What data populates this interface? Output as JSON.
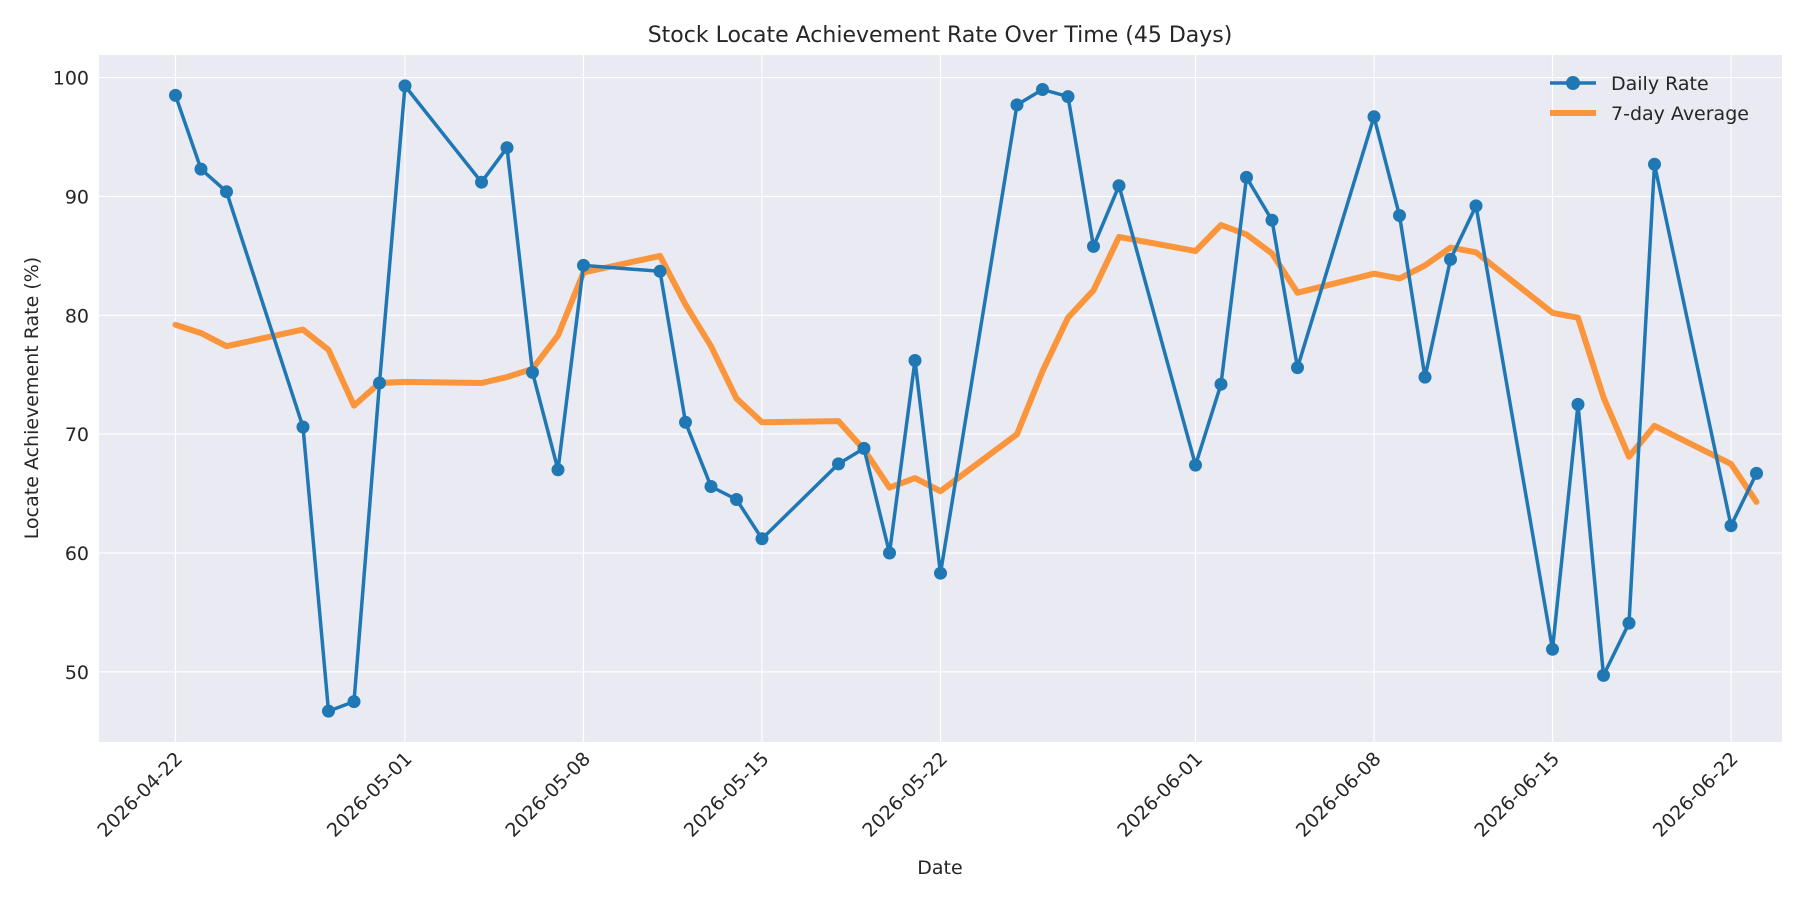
{
  "chart_data": {
    "type": "line",
    "title": "Stock Locate Achievement Rate Over Time (45 Days)",
    "xlabel": "Date",
    "ylabel": "Locate Achievement Rate (%)",
    "x_ticks": [
      "2026-04-22",
      "2026-05-01",
      "2026-05-08",
      "2026-05-15",
      "2026-05-22",
      "2026-06-01",
      "2026-06-08",
      "2026-06-15",
      "2026-06-22"
    ],
    "y_ticks": [
      50,
      60,
      70,
      80,
      90,
      100
    ],
    "ylim": [
      44.1,
      101.9
    ],
    "xlim": [
      "2026-04-19",
      "2026-06-24"
    ],
    "grid": true,
    "legend_position": "top-right",
    "x": [
      "2026-04-22",
      "2026-04-23",
      "2026-04-24",
      "2026-04-27",
      "2026-04-28",
      "2026-04-29",
      "2026-04-30",
      "2026-05-01",
      "2026-05-04",
      "2026-05-05",
      "2026-05-06",
      "2026-05-07",
      "2026-05-08",
      "2026-05-11",
      "2026-05-12",
      "2026-05-13",
      "2026-05-14",
      "2026-05-15",
      "2026-05-18",
      "2026-05-19",
      "2026-05-20",
      "2026-05-21",
      "2026-05-22",
      "2026-05-25",
      "2026-05-26",
      "2026-05-27",
      "2026-05-28",
      "2026-05-29",
      "2026-06-01",
      "2026-06-02",
      "2026-06-03",
      "2026-06-04",
      "2026-06-05",
      "2026-06-08",
      "2026-06-09",
      "2026-06-10",
      "2026-06-11",
      "2026-06-12",
      "2026-06-15",
      "2026-06-16",
      "2026-06-17",
      "2026-06-18",
      "2026-06-19",
      "2026-06-22",
      "2026-06-23"
    ],
    "series": [
      {
        "name": "Daily Rate",
        "color": "#1f77b4",
        "markers": true,
        "values": [
          98.5,
          92.3,
          90.4,
          70.6,
          46.7,
          47.5,
          74.3,
          99.3,
          91.2,
          94.1,
          75.2,
          67.0,
          84.2,
          83.7,
          71.0,
          65.6,
          64.5,
          61.2,
          67.5,
          68.8,
          60.0,
          76.2,
          58.3,
          97.7,
          99.0,
          98.4,
          85.8,
          90.9,
          67.4,
          74.2,
          91.6,
          88.0,
          75.6,
          96.7,
          88.4,
          74.8,
          84.7,
          89.2,
          51.9,
          72.5,
          49.7,
          54.1,
          92.7,
          62.3,
          66.7
        ]
      },
      {
        "name": "7-day Average",
        "color": "#ff7f0e",
        "markers": false,
        "values": [
          79.2,
          78.5,
          77.4,
          78.8,
          77.1,
          72.4,
          74.3,
          74.4,
          74.3,
          74.8,
          75.5,
          78.3,
          83.6,
          85.0,
          80.9,
          77.4,
          73.0,
          71.0,
          71.1,
          68.7,
          65.5,
          66.3,
          65.2,
          70.0,
          75.3,
          79.8,
          82.1,
          86.6,
          85.4,
          87.6,
          86.8,
          85.2,
          81.9,
          83.5,
          83.1,
          84.2,
          85.7,
          85.3,
          80.2,
          79.8,
          73.1,
          68.1,
          70.7,
          67.5,
          64.3
        ]
      }
    ]
  }
}
